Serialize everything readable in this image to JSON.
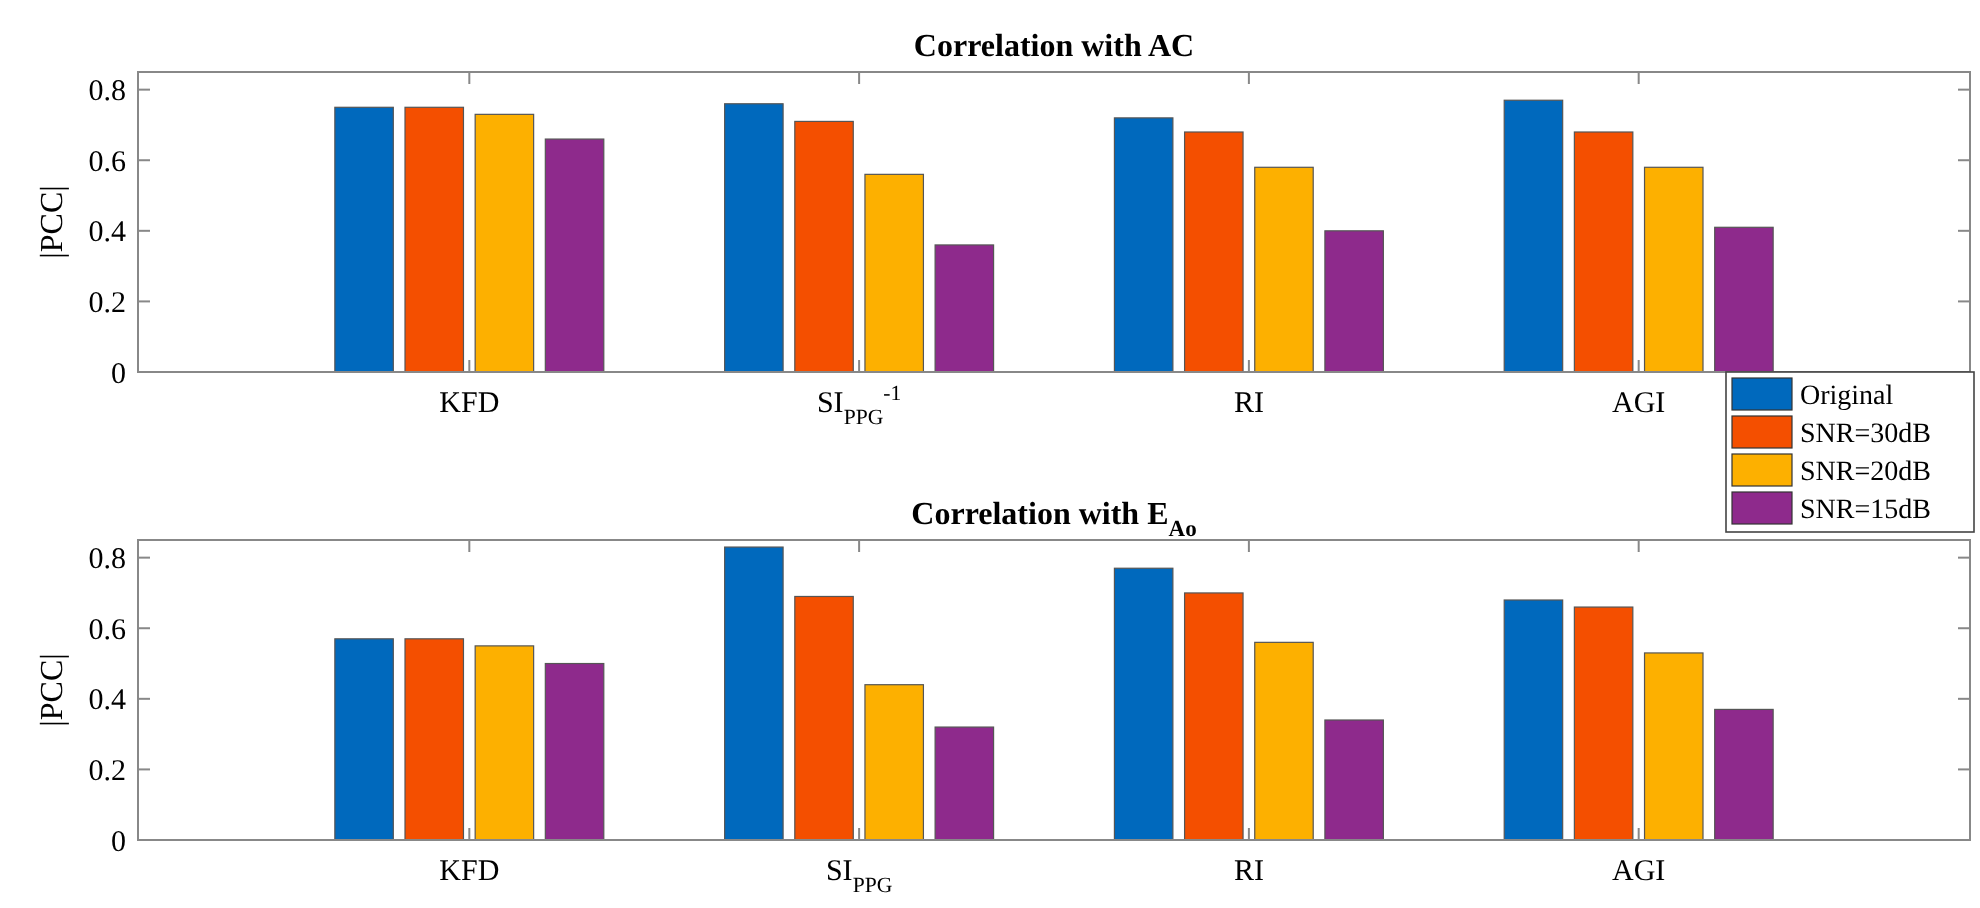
{
  "chart_data": [
    {
      "type": "bar",
      "title": "Correlation with AC",
      "ylabel": "|PCC|",
      "categories": [
        "KFD",
        "SI$_{PPG}$$^{-1}$",
        "RI",
        "AGI"
      ],
      "ylim": [
        0,
        0.85
      ],
      "yticks": [
        0,
        0.2,
        0.4,
        0.6,
        0.8
      ],
      "legend": "bottom right",
      "series": [
        {
          "name": "Original",
          "color": "#0069bd",
          "values": [
            0.75,
            0.76,
            0.72,
            0.77
          ]
        },
        {
          "name": "SNR=30dB",
          "color": "#f44f00",
          "values": [
            0.75,
            0.71,
            0.68,
            0.68
          ]
        },
        {
          "name": "SNR=20dB",
          "color": "#fdb000",
          "values": [
            0.73,
            0.56,
            0.58,
            0.58
          ]
        },
        {
          "name": "SNR=15dB",
          "color": "#8e2a8c",
          "values": [
            0.66,
            0.36,
            0.4,
            0.41
          ]
        }
      ]
    },
    {
      "type": "bar",
      "title": "Correlation with E$_{Ao}$",
      "ylabel": "|PCC|",
      "categories": [
        "KFD",
        "SI$_{PPG}$",
        "RI",
        "AGI"
      ],
      "ylim": [
        0,
        0.85
      ],
      "yticks": [
        0,
        0.2,
        0.4,
        0.6,
        0.8
      ],
      "series": [
        {
          "color": "#0069bd",
          "values": [
            0.57,
            0.83,
            0.77,
            0.68
          ]
        },
        {
          "color": "#f44f00",
          "values": [
            0.57,
            0.69,
            0.7,
            0.66
          ]
        },
        {
          "color": "#fdb000",
          "values": [
            0.55,
            0.44,
            0.56,
            0.53
          ]
        },
        {
          "color": "#8e2a8c",
          "values": [
            0.5,
            0.32,
            0.34,
            0.37
          ]
        }
      ]
    }
  ]
}
